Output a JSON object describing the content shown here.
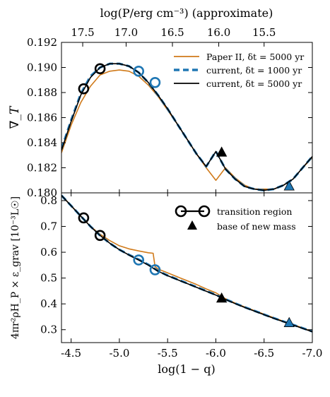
{
  "chart_data": [
    {
      "type": "line",
      "panel": "top",
      "ylabel": "∇_T",
      "top_xlabel": "log(P/erg cm⁻³) (approximate)",
      "top_xticks": [
        "17.5",
        "17.0",
        "16.5",
        "16.0",
        "15.5"
      ],
      "top_xtick_at_log1mq": [
        -4.62,
        -5.07,
        -5.55,
        -6.03,
        -6.5
      ],
      "xlim": [
        -4.4,
        -7.0
      ],
      "ylim": [
        0.18,
        0.192
      ],
      "yticks": [
        "0.180",
        "0.182",
        "0.184",
        "0.186",
        "0.188",
        "0.190",
        "0.192"
      ],
      "legend_position": "top-right",
      "series": [
        {
          "name": "Paper II, δt = 5000 yr",
          "color": "#d07a1a",
          "style": "solid",
          "x": [
            -4.4,
            -4.5,
            -4.6,
            -4.7,
            -4.8,
            -4.9,
            -5.0,
            -5.1,
            -5.2,
            -5.3,
            -5.4,
            -5.5,
            -5.6,
            -5.7,
            -5.8,
            -5.9,
            -6.0,
            -6.1,
            -6.2,
            -6.3,
            -6.4,
            -6.5,
            -6.6,
            -6.7,
            -6.8,
            -6.9,
            -7.0
          ],
          "y": [
            0.1832,
            0.1854,
            0.1872,
            0.1885,
            0.1894,
            0.1897,
            0.1898,
            0.1897,
            0.1893,
            0.1886,
            0.1877,
            0.1866,
            0.1855,
            0.1843,
            0.1831,
            0.182,
            0.181,
            0.182,
            0.1812,
            0.1806,
            0.1803,
            0.1803,
            0.1803,
            0.1806,
            0.1811,
            0.182,
            0.1828
          ]
        },
        {
          "name": "current, δt = 1000 yr",
          "color": "#1f77b4",
          "style": "dashed",
          "x": [
            -4.4,
            -4.5,
            -4.6,
            -4.7,
            -4.8,
            -4.9,
            -5.0,
            -5.1,
            -5.2,
            -5.3,
            -5.4,
            -5.5,
            -5.6,
            -5.7,
            -5.8,
            -5.9,
            -6.0,
            -6.1,
            -6.2,
            -6.3,
            -6.4,
            -6.5,
            -6.6,
            -6.7,
            -6.8,
            -6.9,
            -7.0
          ],
          "y": [
            0.1835,
            0.1858,
            0.1879,
            0.1893,
            0.19,
            0.1903,
            0.1903,
            0.1901,
            0.1896,
            0.1888,
            0.1878,
            0.1867,
            0.1855,
            0.1843,
            0.1831,
            0.1821,
            0.1833,
            0.1819,
            0.1811,
            0.1805,
            0.1803,
            0.1802,
            0.1803,
            0.1806,
            0.1811,
            0.182,
            0.1829
          ]
        },
        {
          "name": "current, δt = 5000 yr",
          "color": "#000000",
          "style": "solid",
          "x": [
            -4.4,
            -4.5,
            -4.6,
            -4.7,
            -4.8,
            -4.9,
            -5.0,
            -5.1,
            -5.2,
            -5.3,
            -5.4,
            -5.5,
            -5.6,
            -5.7,
            -5.8,
            -5.9,
            -6.0,
            -6.1,
            -6.2,
            -6.3,
            -6.4,
            -6.5,
            -6.6,
            -6.7,
            -6.8,
            -6.9,
            -7.0
          ],
          "y": [
            0.1834,
            0.1857,
            0.1878,
            0.1892,
            0.19,
            0.1903,
            0.1903,
            0.1901,
            0.1896,
            0.1888,
            0.1878,
            0.1867,
            0.1855,
            0.1843,
            0.1831,
            0.1821,
            0.1833,
            0.1819,
            0.1811,
            0.1805,
            0.1803,
            0.1802,
            0.1803,
            0.1806,
            0.1811,
            0.182,
            0.1829
          ]
        }
      ],
      "markers": [
        {
          "type": "circle",
          "color": "#000000",
          "x": -4.63,
          "y": 0.1883
        },
        {
          "type": "circle",
          "color": "#000000",
          "x": -4.8,
          "y": 0.1899
        },
        {
          "type": "circle",
          "color": "#1f77b4",
          "x": -5.2,
          "y": 0.1897
        },
        {
          "type": "circle",
          "color": "#1f77b4",
          "x": -5.37,
          "y": 0.1888
        },
        {
          "type": "triangle",
          "color": "#000000",
          "x": -6.06,
          "y": 0.1832
        },
        {
          "type": "triangle",
          "color": "#1f77b4",
          "x": -6.76,
          "y": 0.1805
        }
      ]
    },
    {
      "type": "line",
      "panel": "bottom",
      "xlabel": "log(1 − q)",
      "ylabel": "4πr²ρH_P × ε_grav [10⁻³L☉]",
      "xlim": [
        -4.4,
        -7.0
      ],
      "ylim": [
        0.25,
        0.83
      ],
      "xticks": [
        "-4.5",
        "-5.0",
        "-5.5",
        "-6.0",
        "-6.5",
        "-7.0"
      ],
      "yticks": [
        "0.3",
        "0.4",
        "0.5",
        "0.6",
        "0.7",
        "0.8"
      ],
      "legend_position": "top-right",
      "legend": [
        {
          "marker": "circle-pair",
          "label": "transition region"
        },
        {
          "marker": "triangle",
          "label": "base of new mass"
        }
      ],
      "series": [
        {
          "name": "Paper II, δt = 5000 yr",
          "color": "#d07a1a",
          "style": "solid",
          "x": [
            -4.4,
            -4.5,
            -4.6,
            -4.7,
            -4.8,
            -4.9,
            -5.0,
            -5.1,
            -5.2,
            -5.3,
            -5.35,
            -5.37,
            -5.4,
            -5.5,
            -5.6,
            -5.7,
            -5.8,
            -5.9,
            -6.0,
            -6.1,
            -6.2,
            -6.3,
            -6.4,
            -6.5,
            -6.6,
            -6.7,
            -6.8,
            -6.9,
            -7.0
          ],
          "y": [
            0.82,
            0.78,
            0.74,
            0.7,
            0.67,
            0.645,
            0.625,
            0.613,
            0.605,
            0.598,
            0.596,
            0.545,
            0.535,
            0.52,
            0.505,
            0.49,
            0.475,
            0.458,
            0.443,
            0.42,
            0.403,
            0.388,
            0.374,
            0.36,
            0.346,
            0.333,
            0.32,
            0.307,
            0.293
          ]
        },
        {
          "name": "current, δt = 1000 yr",
          "color": "#1f77b4",
          "style": "dashed",
          "x": [
            -4.4,
            -4.5,
            -4.6,
            -4.7,
            -4.8,
            -4.9,
            -5.0,
            -5.1,
            -5.2,
            -5.3,
            -5.4,
            -5.5,
            -5.6,
            -5.7,
            -5.8,
            -5.9,
            -6.0,
            -6.1,
            -6.2,
            -6.3,
            -6.4,
            -6.5,
            -6.6,
            -6.7,
            -6.8,
            -6.9,
            -7.0
          ],
          "y": [
            0.82,
            0.78,
            0.74,
            0.7,
            0.665,
            0.635,
            0.61,
            0.59,
            0.572,
            0.552,
            0.528,
            0.51,
            0.495,
            0.48,
            0.465,
            0.45,
            0.435,
            0.418,
            0.402,
            0.387,
            0.373,
            0.359,
            0.345,
            0.332,
            0.319,
            0.306,
            0.293
          ]
        },
        {
          "name": "current, δt = 5000 yr",
          "color": "#000000",
          "style": "solid",
          "x": [
            -4.4,
            -4.5,
            -4.6,
            -4.7,
            -4.8,
            -4.9,
            -5.0,
            -5.1,
            -5.2,
            -5.3,
            -5.4,
            -5.5,
            -5.6,
            -5.7,
            -5.8,
            -5.9,
            -6.0,
            -6.1,
            -6.2,
            -6.3,
            -6.4,
            -6.5,
            -6.6,
            -6.7,
            -6.8,
            -6.9,
            -7.0
          ],
          "y": [
            0.82,
            0.78,
            0.74,
            0.7,
            0.665,
            0.635,
            0.61,
            0.589,
            0.57,
            0.55,
            0.527,
            0.509,
            0.494,
            0.479,
            0.464,
            0.449,
            0.434,
            0.417,
            0.401,
            0.386,
            0.372,
            0.358,
            0.344,
            0.331,
            0.318,
            0.305,
            0.292
          ]
        }
      ],
      "markers": [
        {
          "type": "circle",
          "color": "#000000",
          "x": -4.63,
          "y": 0.733
        },
        {
          "type": "circle",
          "color": "#000000",
          "x": -4.8,
          "y": 0.665
        },
        {
          "type": "circle",
          "color": "#1f77b4",
          "x": -5.2,
          "y": 0.57
        },
        {
          "type": "circle",
          "color": "#1f77b4",
          "x": -5.37,
          "y": 0.532
        },
        {
          "type": "triangle",
          "color": "#000000",
          "x": -6.06,
          "y": 0.42
        },
        {
          "type": "triangle",
          "color": "#1f77b4",
          "x": -6.76,
          "y": 0.325
        }
      ]
    }
  ]
}
